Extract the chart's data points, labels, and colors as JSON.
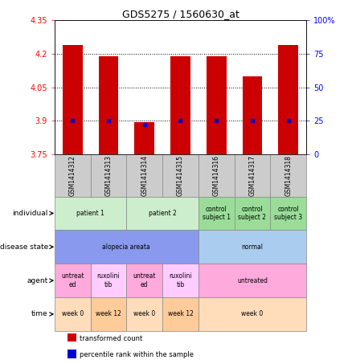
{
  "title": "GDS5275 / 1560630_at",
  "samples": [
    "GSM1414312",
    "GSM1414313",
    "GSM1414314",
    "GSM1414315",
    "GSM1414316",
    "GSM1414317",
    "GSM1414318"
  ],
  "bar_values": [
    4.24,
    4.19,
    3.895,
    4.19,
    4.19,
    4.1,
    4.24
  ],
  "percentile_values": [
    25,
    25,
    22,
    25,
    25,
    25,
    25
  ],
  "ylim": [
    3.75,
    4.35
  ],
  "yticks_left": [
    3.75,
    3.9,
    4.05,
    4.2,
    4.35
  ],
  "yticks_right": [
    0,
    25,
    50,
    75,
    100
  ],
  "right_labels": [
    "0",
    "25",
    "50",
    "75",
    "100%"
  ],
  "bar_color": "#cc0000",
  "percentile_color": "#0000cc",
  "rows": [
    {
      "label": "individual",
      "groups": [
        {
          "text": "patient 1",
          "span": [
            0,
            1
          ],
          "color": "#cceecc"
        },
        {
          "text": "patient 2",
          "span": [
            2,
            3
          ],
          "color": "#cceecc"
        },
        {
          "text": "control\nsubject 1",
          "span": [
            4,
            4
          ],
          "color": "#99dd99"
        },
        {
          "text": "control\nsubject 2",
          "span": [
            5,
            5
          ],
          "color": "#99dd99"
        },
        {
          "text": "control\nsubject 3",
          "span": [
            6,
            6
          ],
          "color": "#99dd99"
        }
      ]
    },
    {
      "label": "disease state",
      "groups": [
        {
          "text": "alopecia areata",
          "span": [
            0,
            3
          ],
          "color": "#8899ee"
        },
        {
          "text": "normal",
          "span": [
            4,
            6
          ],
          "color": "#aaccee"
        }
      ]
    },
    {
      "label": "agent",
      "groups": [
        {
          "text": "untreat\ned",
          "span": [
            0,
            0
          ],
          "color": "#ffaadd"
        },
        {
          "text": "ruxolini\ntib",
          "span": [
            1,
            1
          ],
          "color": "#ffccff"
        },
        {
          "text": "untreat\ned",
          "span": [
            2,
            2
          ],
          "color": "#ffaadd"
        },
        {
          "text": "ruxolini\ntib",
          "span": [
            3,
            3
          ],
          "color": "#ffccff"
        },
        {
          "text": "untreated",
          "span": [
            4,
            6
          ],
          "color": "#ffaadd"
        }
      ]
    },
    {
      "label": "time",
      "groups": [
        {
          "text": "week 0",
          "span": [
            0,
            0
          ],
          "color": "#ffddbb"
        },
        {
          "text": "week 12",
          "span": [
            1,
            1
          ],
          "color": "#ffcc99"
        },
        {
          "text": "week 0",
          "span": [
            2,
            2
          ],
          "color": "#ffddbb"
        },
        {
          "text": "week 12",
          "span": [
            3,
            3
          ],
          "color": "#ffcc99"
        },
        {
          "text": "week 0",
          "span": [
            4,
            6
          ],
          "color": "#ffddbb"
        }
      ]
    }
  ],
  "legend": [
    {
      "color": "#cc0000",
      "label": "transformed count"
    },
    {
      "color": "#0000cc",
      "label": "percentile rank within the sample"
    }
  ]
}
